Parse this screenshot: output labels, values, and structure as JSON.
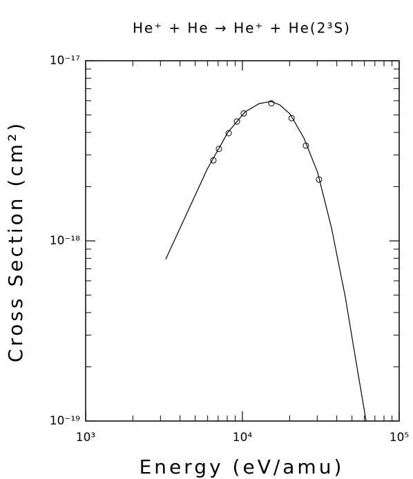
{
  "chart_data": {
    "type": "line",
    "title": "He⁺ + He → He⁺ + He(2³S)",
    "xlabel": "Energy (eV/amu)",
    "ylabel": "Cross Section (cm²)",
    "xscale": "log",
    "yscale": "log",
    "xlim": [
      1000,
      100000
    ],
    "ylim": [
      1e-19,
      1e-17
    ],
    "xticks": [
      {
        "value": 1000,
        "label": "10³"
      },
      {
        "value": 10000,
        "label": "10⁴"
      },
      {
        "value": 100000,
        "label": "10⁵"
      }
    ],
    "yticks": [
      {
        "value": 1e-19,
        "label": "10⁻¹⁹"
      },
      {
        "value": 1e-18,
        "label": "10⁻¹⁸"
      },
      {
        "value": 1e-17,
        "label": "10⁻¹⁷"
      }
    ],
    "xminorticks": [
      2000,
      3000,
      4000,
      5000,
      6000,
      7000,
      8000,
      9000,
      20000,
      30000,
      40000,
      50000,
      60000,
      70000,
      80000,
      90000
    ],
    "yminorticks": [
      2e-19,
      3e-19,
      4e-19,
      5e-19,
      6e-19,
      7e-19,
      8e-19,
      9e-19,
      2e-18,
      3e-18,
      4e-18,
      5e-18,
      6e-18,
      7e-18,
      8e-18,
      9e-18
    ],
    "color": "#000000",
    "curve": {
      "x": [
        3240,
        4400,
        5960,
        8070,
        10400,
        12800,
        15200,
        17300,
        20100,
        24700,
        30200,
        37000,
        45300,
        52700,
        61500
      ],
      "values": [
        7.9e-19,
        1.41e-18,
        2.5e-18,
        4e-18,
        5.2e-18,
        5.78e-18,
        5.94e-18,
        5.69e-18,
        5.07e-18,
        3.72e-18,
        2.39e-18,
        1.18e-18,
        4.9e-19,
        2.21e-19,
        1e-19
      ]
    },
    "points": {
      "x": [
        6530,
        7080,
        8170,
        9230,
        10200,
        15300,
        20600,
        25400,
        30800
      ],
      "values": [
        2.8e-18,
        3.24e-18,
        3.96e-18,
        4.6e-18,
        5.1e-18,
        5.8e-18,
        4.8e-18,
        3.38e-18,
        2.19e-18
      ]
    }
  }
}
